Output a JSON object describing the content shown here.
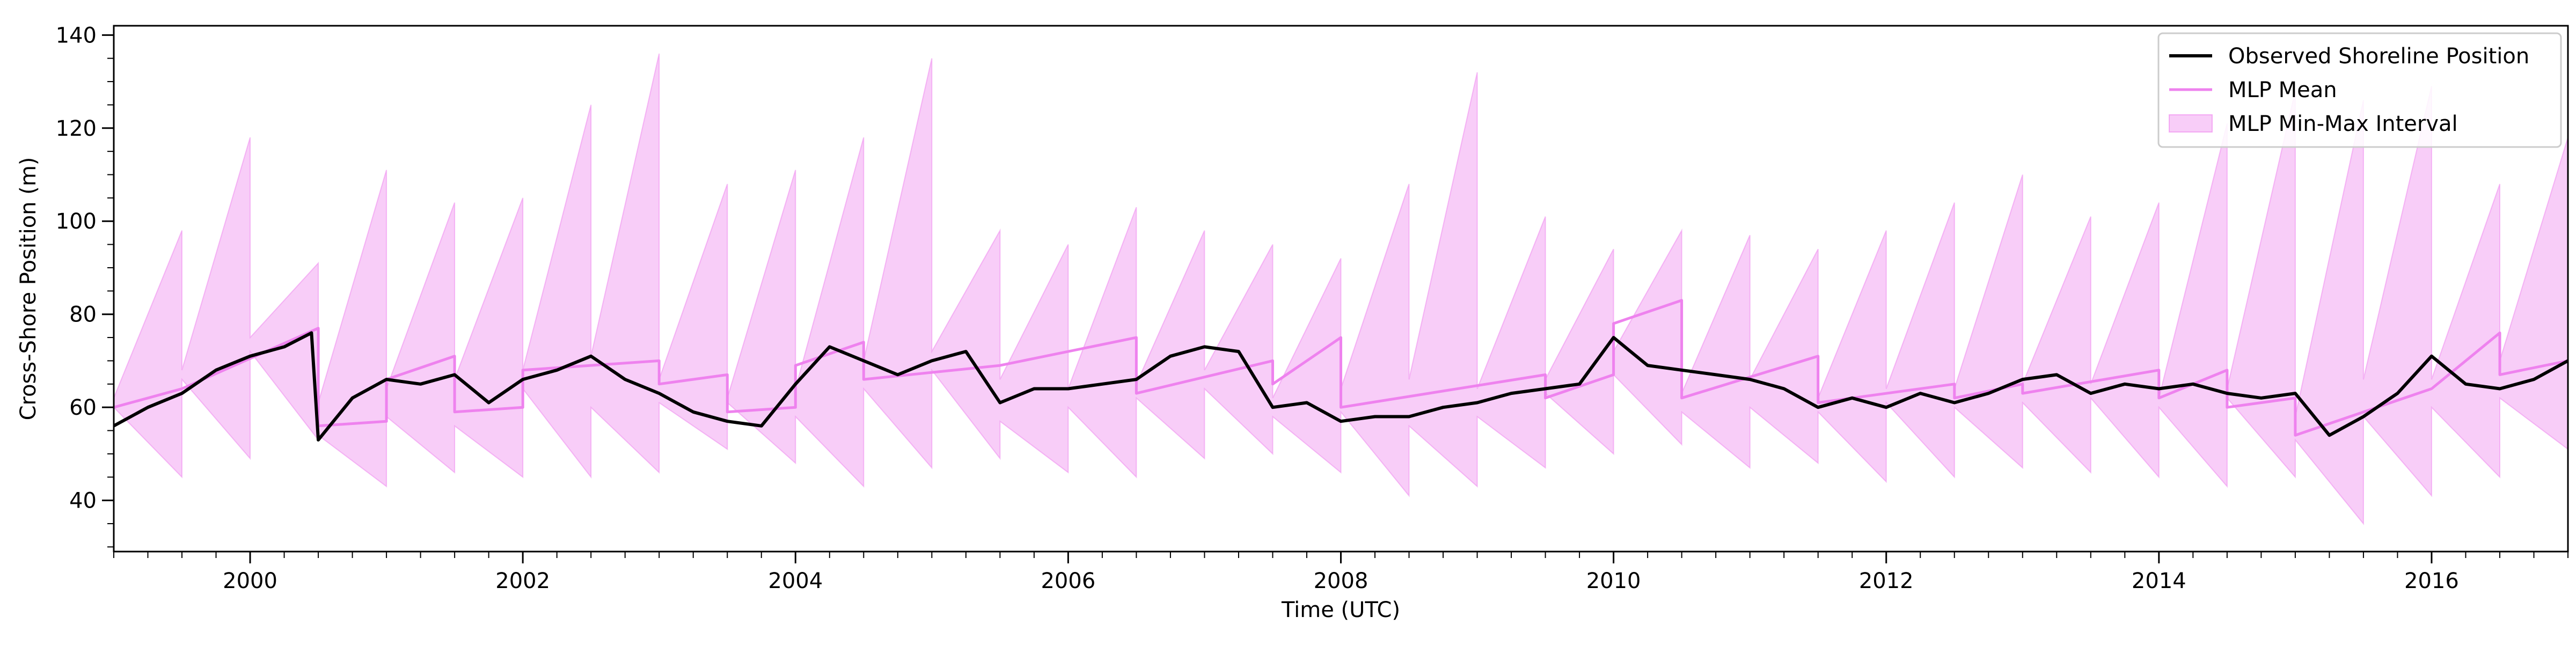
{
  "chart_data": {
    "type": "line",
    "title": "",
    "xlabel": "Time (UTC)",
    "ylabel": "Cross-Shore Position (m)",
    "xlim": [
      1999.0,
      2017.0
    ],
    "ylim": [
      29,
      142
    ],
    "x_ticks": [
      2000,
      2002,
      2004,
      2006,
      2008,
      2010,
      2012,
      2014,
      2016
    ],
    "x_tick_labels": [
      "2000",
      "2002",
      "2004",
      "2006",
      "2008",
      "2010",
      "2012",
      "2014",
      "2016"
    ],
    "y_ticks": [
      40,
      60,
      80,
      100,
      120,
      140
    ],
    "y_tick_labels": [
      "40",
      "60",
      "80",
      "100",
      "120",
      "140"
    ],
    "grid": false,
    "legend_position": "top-right",
    "colors": {
      "observed": "#000000",
      "mean": "#ee82ee",
      "interval_fill": "#ee82ee",
      "interval_fill_opacity": 0.4
    },
    "series": [
      {
        "name": "Observed Shoreline Position",
        "kind": "line",
        "x": [
          1999.0,
          1999.25,
          1999.5,
          1999.75,
          2000.0,
          2000.25,
          2000.45,
          2000.5,
          2000.75,
          2001.0,
          2001.25,
          2001.5,
          2001.75,
          2002.0,
          2002.25,
          2002.5,
          2002.75,
          2003.0,
          2003.25,
          2003.5,
          2003.75,
          2004.0,
          2004.25,
          2004.5,
          2004.75,
          2005.0,
          2005.25,
          2005.5,
          2005.75,
          2006.0,
          2006.25,
          2006.5,
          2006.75,
          2007.0,
          2007.25,
          2007.5,
          2007.75,
          2008.0,
          2008.25,
          2008.5,
          2008.75,
          2009.0,
          2009.25,
          2009.5,
          2009.75,
          2010.0,
          2010.25,
          2010.5,
          2010.75,
          2011.0,
          2011.25,
          2011.5,
          2011.75,
          2012.0,
          2012.25,
          2012.5,
          2012.75,
          2013.0,
          2013.25,
          2013.5,
          2013.75,
          2014.0,
          2014.25,
          2014.5,
          2014.75,
          2015.0,
          2015.25,
          2015.5,
          2015.75,
          2016.0,
          2016.25,
          2016.5,
          2016.75,
          2017.0
        ],
        "y": [
          56,
          60,
          63,
          68,
          71,
          73,
          76,
          53,
          62,
          66,
          65,
          67,
          61,
          66,
          68,
          71,
          66,
          63,
          59,
          57,
          56,
          65,
          73,
          70,
          67,
          70,
          72,
          61,
          64,
          64,
          65,
          66,
          71,
          73,
          72,
          60,
          61,
          57,
          58,
          58,
          60,
          61,
          63,
          64,
          65,
          75,
          69,
          68,
          67,
          66,
          64,
          60,
          62,
          60,
          63,
          61,
          63,
          66,
          67,
          63,
          65,
          64,
          65,
          63,
          62,
          63,
          54,
          58,
          63,
          71,
          65,
          64,
          66,
          70
        ]
      },
      {
        "name": "MLP Mean",
        "kind": "line",
        "x": [
          1999.0,
          1999.5,
          1999.5,
          2000.5,
          2000.5,
          2001.0,
          2001.0,
          2001.5,
          2001.5,
          2002.0,
          2002.0,
          2003.0,
          2003.0,
          2003.5,
          2003.5,
          2004.0,
          2004.0,
          2004.5,
          2004.5,
          2005.5,
          2005.5,
          2006.5,
          2006.5,
          2007.5,
          2007.5,
          2008.0,
          2008.0,
          2009.5,
          2009.5,
          2010.0,
          2010.0,
          2010.5,
          2010.5,
          2011.5,
          2011.5,
          2012.5,
          2012.5,
          2013.0,
          2013.0,
          2014.0,
          2014.0,
          2014.5,
          2014.5,
          2015.0,
          2015.0,
          2016.0,
          2016.0,
          2016.5,
          2016.5,
          2017.0
        ],
        "y": [
          60,
          64,
          64,
          77,
          56,
          57,
          66,
          71,
          59,
          60,
          68,
          70,
          65,
          67,
          59,
          60,
          69,
          74,
          66,
          69,
          69,
          75,
          63,
          70,
          65,
          75,
          60,
          67,
          62,
          67,
          78,
          83,
          62,
          71,
          61,
          65,
          62,
          65,
          63,
          68,
          62,
          68,
          60,
          62,
          54,
          64,
          64,
          76,
          67,
          70
        ]
      },
      {
        "name": "MLP Min-Max Interval",
        "kind": "band",
        "x": [
          1999.0,
          1999.5,
          1999.5,
          2000.0,
          2000.0,
          2000.5,
          2000.5,
          2001.0,
          2001.0,
          2001.5,
          2001.5,
          2002.0,
          2002.0,
          2002.5,
          2002.5,
          2003.0,
          2003.0,
          2003.5,
          2003.5,
          2004.0,
          2004.0,
          2004.5,
          2004.5,
          2005.0,
          2005.0,
          2005.5,
          2005.5,
          2006.0,
          2006.0,
          2006.5,
          2006.5,
          2007.0,
          2007.0,
          2007.5,
          2007.5,
          2008.0,
          2008.0,
          2008.5,
          2008.5,
          2009.0,
          2009.0,
          2009.5,
          2009.5,
          2010.0,
          2010.0,
          2010.5,
          2010.5,
          2011.0,
          2011.0,
          2011.5,
          2011.5,
          2012.0,
          2012.0,
          2012.5,
          2012.5,
          2013.0,
          2013.0,
          2013.5,
          2013.5,
          2014.0,
          2014.0,
          2014.5,
          2014.5,
          2015.0,
          2015.0,
          2015.5,
          2015.5,
          2016.0,
          2016.0,
          2016.5,
          2016.5,
          2017.0
        ],
        "lower": [
          60,
          45,
          66,
          49,
          72,
          53,
          54,
          43,
          58,
          46,
          56,
          45,
          64,
          45,
          60,
          46,
          61,
          51,
          61,
          48,
          58,
          43,
          64,
          47,
          68,
          49,
          57,
          46,
          60,
          45,
          62,
          49,
          64,
          50,
          58,
          46,
          59,
          41,
          56,
          43,
          58,
          47,
          63,
          50,
          67,
          52,
          59,
          47,
          60,
          48,
          59,
          44,
          61,
          45,
          60,
          47,
          61,
          46,
          62,
          45,
          60,
          43,
          62,
          45,
          53,
          35,
          58,
          41,
          60,
          45,
          62,
          51
        ],
        "upper": [
          62,
          98,
          68,
          118,
          75,
          91,
          61,
          111,
          64,
          104,
          66,
          105,
          68,
          125,
          71,
          136,
          66,
          108,
          62,
          111,
          64,
          118,
          70,
          135,
          72,
          98,
          66,
          95,
          64,
          103,
          65,
          98,
          68,
          95,
          62,
          92,
          64,
          108,
          66,
          132,
          64,
          101,
          66,
          94,
          72,
          98,
          63,
          97,
          66,
          94,
          62,
          98,
          64,
          104,
          64,
          110,
          65,
          101,
          65,
          104,
          62,
          121,
          64,
          128,
          58,
          126,
          66,
          129,
          66,
          108,
          70,
          118
        ]
      }
    ]
  }
}
